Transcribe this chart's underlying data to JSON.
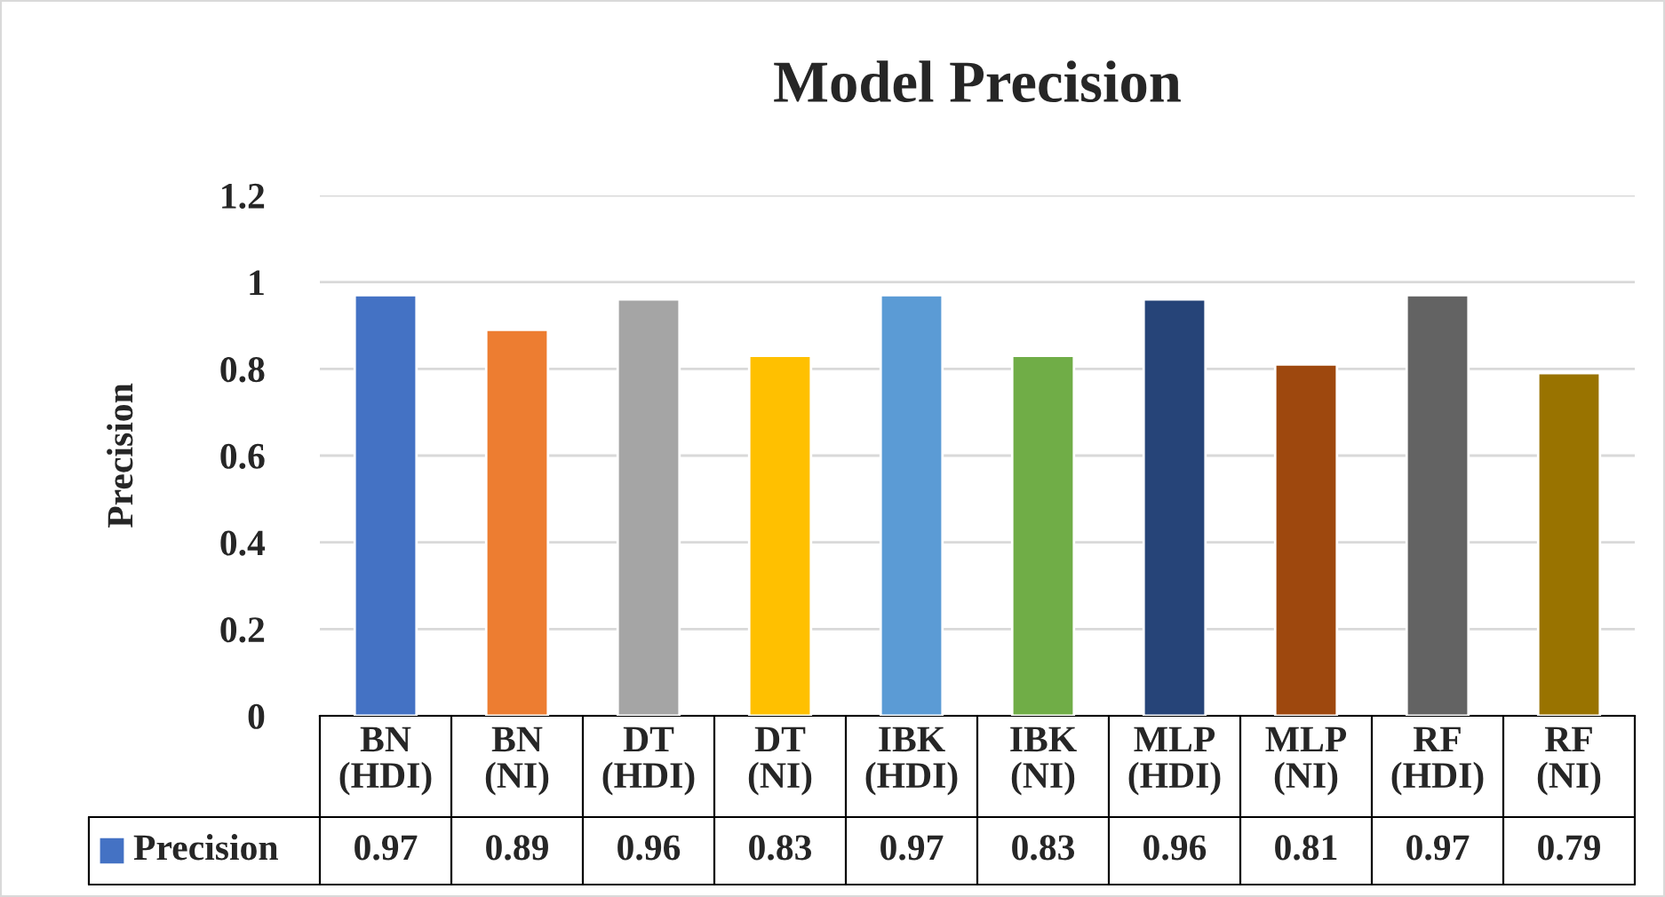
{
  "chart_data": {
    "type": "bar",
    "title": "Model Precision",
    "ylabel": "Precision",
    "categories": [
      "BN\n(HDI)",
      "BN\n(NI)",
      "DT\n(HDI)",
      "DT\n(NI)",
      "IBK\n(HDI)",
      "IBK\n(NI)",
      "MLP\n(HDI)",
      "MLP\n(NI)",
      "RF\n(HDI)",
      "RF\n(NI)"
    ],
    "series": [
      {
        "name": "Precision",
        "color": "#4472c4",
        "values": [
          0.97,
          0.89,
          0.96,
          0.83,
          0.97,
          0.83,
          0.96,
          0.81,
          0.97,
          0.79
        ],
        "colors": [
          "#4472c4",
          "#ed7d31",
          "#a5a5a5",
          "#ffc000",
          "#5b9bd5",
          "#70ad47",
          "#264478",
          "#9e480e",
          "#636363",
          "#997300"
        ]
      }
    ],
    "ylim": [
      0,
      1.2
    ],
    "yticks": [
      0,
      0.2,
      0.4,
      0.6,
      0.8,
      1,
      1.2
    ],
    "grid": "y",
    "data_labels": true,
    "legend": "bottom"
  }
}
